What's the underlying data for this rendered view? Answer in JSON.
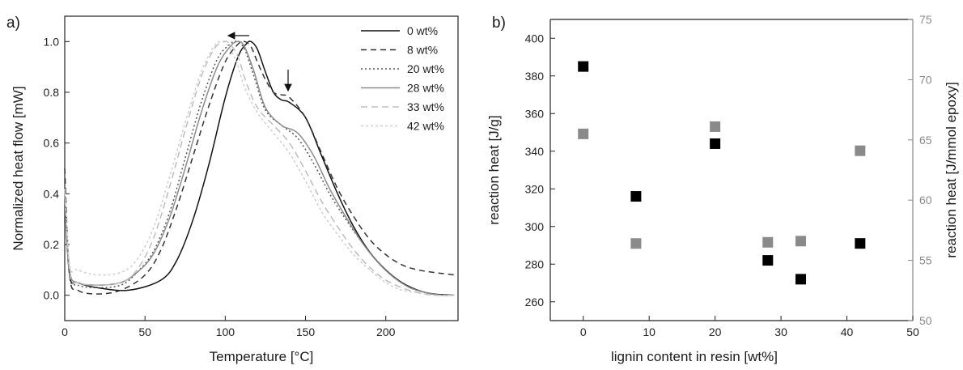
{
  "chart_data": [
    {
      "panel": "a)",
      "type": "line",
      "xlabel": "Temperature [°C]",
      "ylabel": "Normalized heat flow [mW]",
      "xlim": [
        0,
        245
      ],
      "ylim": [
        -0.1,
        1.1
      ],
      "x_ticks": [
        0,
        50,
        100,
        150,
        200
      ],
      "y_ticks": [
        0.0,
        0.2,
        0.4,
        0.6,
        0.8,
        1.0
      ],
      "legend_position": "top-right",
      "series": [
        {
          "name": "0 wt%",
          "color": "#111111",
          "dash": "solid",
          "x": [
            0,
            3,
            8,
            20,
            40,
            60,
            70,
            80,
            90,
            100,
            108,
            113,
            116,
            120,
            125,
            130,
            135,
            140,
            150,
            160,
            170,
            180,
            190,
            200,
            210,
            220,
            230,
            243
          ],
          "y": [
            0.38,
            0.08,
            0.05,
            0.03,
            0.02,
            0.06,
            0.14,
            0.3,
            0.52,
            0.78,
            0.94,
            0.99,
            1.0,
            0.97,
            0.88,
            0.8,
            0.77,
            0.76,
            0.7,
            0.55,
            0.4,
            0.27,
            0.17,
            0.1,
            0.05,
            0.02,
            0.005,
            0.0
          ]
        },
        {
          "name": "8 wt%",
          "color": "#333333",
          "dash": "7,5",
          "x": [
            0,
            3,
            8,
            20,
            35,
            50,
            60,
            70,
            80,
            90,
            100,
            108,
            112,
            116,
            120,
            125,
            130,
            135,
            140,
            150,
            160,
            170,
            180,
            190,
            200,
            210,
            220,
            230,
            243
          ],
          "y": [
            0.5,
            0.08,
            0.02,
            0.005,
            0.02,
            0.08,
            0.18,
            0.35,
            0.55,
            0.75,
            0.92,
            0.99,
            1.0,
            0.98,
            0.92,
            0.85,
            0.8,
            0.79,
            0.78,
            0.7,
            0.56,
            0.42,
            0.31,
            0.22,
            0.16,
            0.12,
            0.1,
            0.09,
            0.08
          ]
        },
        {
          "name": "20 wt%",
          "color": "#555555",
          "dash": "2,3",
          "x": [
            0,
            3,
            8,
            20,
            35,
            45,
            55,
            65,
            75,
            85,
            95,
            103,
            107,
            112,
            118,
            125,
            135,
            145,
            155,
            165,
            175,
            185,
            195,
            205,
            215,
            225,
            235,
            243
          ],
          "y": [
            0.4,
            0.08,
            0.04,
            0.03,
            0.04,
            0.09,
            0.17,
            0.32,
            0.54,
            0.76,
            0.93,
            0.99,
            1.0,
            0.97,
            0.86,
            0.73,
            0.67,
            0.62,
            0.52,
            0.4,
            0.3,
            0.21,
            0.13,
            0.07,
            0.03,
            0.01,
            0.0,
            0.0
          ]
        },
        {
          "name": "28 wt%",
          "color": "#8c8c8c",
          "dash": "solid",
          "x": [
            0,
            3,
            8,
            20,
            35,
            45,
            55,
            65,
            75,
            85,
            95,
            103,
            108,
            112,
            118,
            125,
            135,
            145,
            155,
            165,
            175,
            185,
            195,
            205,
            215,
            225,
            235,
            243
          ],
          "y": [
            0.4,
            0.1,
            0.05,
            0.04,
            0.05,
            0.09,
            0.16,
            0.3,
            0.5,
            0.72,
            0.9,
            0.98,
            1.0,
            0.98,
            0.88,
            0.74,
            0.67,
            0.64,
            0.55,
            0.42,
            0.31,
            0.21,
            0.13,
            0.07,
            0.03,
            0.01,
            0.0,
            0.0
          ]
        },
        {
          "name": "33 wt%",
          "color": "#bdbdbd",
          "dash": "8,5",
          "x": [
            0,
            3,
            8,
            20,
            35,
            45,
            55,
            65,
            75,
            85,
            93,
            99,
            103,
            108,
            113,
            120,
            130,
            140,
            150,
            160,
            170,
            180,
            190,
            200,
            210,
            220,
            230,
            243
          ],
          "y": [
            0.42,
            0.09,
            0.05,
            0.04,
            0.05,
            0.1,
            0.22,
            0.42,
            0.65,
            0.86,
            0.97,
            1.0,
            0.99,
            0.94,
            0.84,
            0.74,
            0.67,
            0.6,
            0.49,
            0.37,
            0.27,
            0.18,
            0.11,
            0.06,
            0.03,
            0.01,
            0.0,
            0.0
          ]
        },
        {
          "name": "42 wt%",
          "color": "#cfcfcf",
          "dash": "3,3",
          "x": [
            0,
            3,
            8,
            20,
            35,
            45,
            55,
            65,
            75,
            85,
            93,
            98,
            102,
            107,
            112,
            120,
            130,
            140,
            150,
            160,
            170,
            180,
            190,
            200,
            210,
            220,
            230,
            243
          ],
          "y": [
            0.42,
            0.12,
            0.1,
            0.08,
            0.09,
            0.14,
            0.26,
            0.46,
            0.68,
            0.88,
            0.98,
            1.0,
            0.98,
            0.92,
            0.82,
            0.72,
            0.64,
            0.56,
            0.45,
            0.33,
            0.24,
            0.16,
            0.1,
            0.05,
            0.02,
            0.01,
            0.0,
            0.0
          ]
        }
      ],
      "annotations": [
        "arrow-left-at-peak",
        "arrow-down-at-shoulder"
      ]
    },
    {
      "panel": "b)",
      "type": "scatter",
      "xlabel": "lignin content in resin [wt%]",
      "ylabel": "reaction heat [J/g]",
      "ylabel_right": "reaction heat [J/mmol epoxy]",
      "xlim": [
        -5,
        50
      ],
      "ylim": [
        250,
        410
      ],
      "ylim_right": [
        50,
        75
      ],
      "x_ticks": [
        0,
        10,
        20,
        30,
        40,
        50
      ],
      "y_ticks": [
        260,
        280,
        300,
        320,
        340,
        360,
        380,
        400
      ],
      "y_ticks_right": [
        50,
        55,
        60,
        65,
        70,
        75
      ],
      "series": [
        {
          "axis": "left",
          "color": "#000000",
          "marker": "square",
          "x": [
            0,
            8,
            20,
            28,
            33,
            42
          ],
          "y": [
            385,
            316,
            344,
            282,
            272,
            291
          ]
        },
        {
          "axis": "right",
          "color": "#8a8a8a",
          "marker": "square",
          "x": [
            0,
            8,
            20,
            28,
            33,
            42
          ],
          "y": [
            65.5,
            56.4,
            66.1,
            56.5,
            56.6,
            64.1
          ]
        }
      ]
    }
  ]
}
